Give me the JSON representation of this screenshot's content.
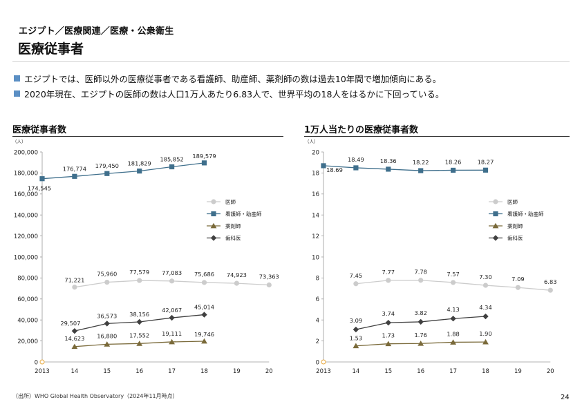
{
  "header": {
    "breadcrumb": "エジプト／医療関連／医療・公衆衛生",
    "title": "医療従事者"
  },
  "bullets": [
    "エジプトでは、医師以外の医療従事者である看護師、助産師、薬剤師の数は過去10年間で増加傾向にある。",
    "2020年現在、エジプトの医師の数は人口1万人あたり6.83人で、世界平均の18人をはるかに下回っている。"
  ],
  "chart_data": [
    {
      "type": "line",
      "title": "医療従事者数",
      "unit": "（人）",
      "categories": [
        "2013",
        "14",
        "15",
        "16",
        "17",
        "18",
        "19",
        "20"
      ],
      "ylim": [
        0,
        200000
      ],
      "yticks": [
        "0",
        "20,000",
        "40,000",
        "60,000",
        "80,000",
        "100,000",
        "120,000",
        "140,000",
        "160,000",
        "180,000",
        "200,000"
      ],
      "colors": {
        "医師": "#cccccc",
        "看護師・助産師": "#3f6f8c",
        "薬剤師": "#7a6a3a",
        "歯科医": "#404040"
      },
      "series": [
        {
          "name": "医師",
          "marker": "circle",
          "values": [
            null,
            71221,
            75960,
            77579,
            77083,
            75686,
            74923,
            73363
          ],
          "labels": [
            null,
            "71,221",
            "75,960",
            "77,579",
            "77,083",
            "75,686",
            "74,923",
            "73,363"
          ]
        },
        {
          "name": "看護師・助産師",
          "marker": "square",
          "values": [
            174545,
            176774,
            179450,
            181829,
            185852,
            189579,
            null,
            null
          ],
          "labels": [
            "174,545",
            "176,774",
            "179,450",
            "181,829",
            "185,852",
            "189,579",
            null,
            null
          ]
        },
        {
          "name": "薬剤師",
          "marker": "triangle",
          "values": [
            null,
            14623,
            16880,
            17552,
            19111,
            19746,
            null,
            null
          ],
          "labels": [
            null,
            "14,623",
            "16,880",
            "17,552",
            "19,111",
            "19,746",
            null,
            null
          ]
        },
        {
          "name": "歯科医",
          "marker": "diamond",
          "values": [
            null,
            29507,
            36573,
            38156,
            42067,
            45014,
            null,
            null
          ],
          "labels": [
            null,
            "29,507",
            "36,573",
            "38,156",
            "42,067",
            "45,014",
            null,
            null
          ]
        }
      ]
    },
    {
      "type": "line",
      "title": "1万人当たりの医療従事者数",
      "unit": "（人）",
      "categories": [
        "2013",
        "14",
        "15",
        "16",
        "17",
        "18",
        "19",
        "20"
      ],
      "ylim": [
        0,
        20
      ],
      "yticks": [
        "0",
        "2",
        "4",
        "6",
        "8",
        "10",
        "12",
        "14",
        "16",
        "18",
        "20"
      ],
      "colors": {
        "医師": "#cccccc",
        "看護師・助産師": "#3f6f8c",
        "薬剤師": "#7a6a3a",
        "歯科医": "#404040"
      },
      "series": [
        {
          "name": "医師",
          "marker": "circle",
          "values": [
            null,
            7.45,
            7.77,
            7.78,
            7.57,
            7.3,
            7.09,
            6.83
          ],
          "labels": [
            null,
            "7.45",
            "7.77",
            "7.78",
            "7.57",
            "7.30",
            "7.09",
            "6.83"
          ]
        },
        {
          "name": "看護師・助産師",
          "marker": "square",
          "values": [
            18.69,
            18.49,
            18.36,
            18.22,
            18.26,
            18.27,
            null,
            null
          ],
          "labels": [
            "18.69",
            "18.49",
            "18.36",
            "18.22",
            "18.26",
            "18.27",
            null,
            null
          ]
        },
        {
          "name": "薬剤師",
          "marker": "triangle",
          "values": [
            null,
            1.53,
            1.73,
            1.76,
            1.88,
            1.9,
            null,
            null
          ],
          "labels": [
            null,
            "1.53",
            "1.73",
            "1.76",
            "1.88",
            "1.90",
            null,
            null
          ]
        },
        {
          "name": "歯科医",
          "marker": "diamond",
          "values": [
            null,
            3.09,
            3.74,
            3.82,
            4.13,
            4.34,
            null,
            null
          ],
          "labels": [
            null,
            "3.09",
            "3.74",
            "3.82",
            "4.13",
            "4.34",
            null,
            null
          ]
        }
      ]
    }
  ],
  "footer": {
    "source": "（出所）WHO Global Health Observatory（2024年11月時点）",
    "page_number": "24"
  }
}
